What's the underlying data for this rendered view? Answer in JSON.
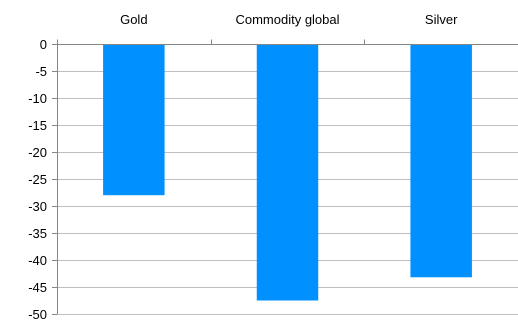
{
  "chart_data": {
    "type": "bar",
    "categories": [
      "Gold",
      "Commodity global",
      "Silver"
    ],
    "values": [
      -28,
      -47.5,
      -43.2
    ],
    "title": "",
    "xlabel": "",
    "ylabel": "",
    "ylim": [
      -50,
      0
    ],
    "yticks": [
      "0",
      "-5",
      "-10",
      "-15",
      "-20",
      "-25",
      "-30",
      "-35",
      "-40",
      "-45",
      "-50"
    ],
    "grid": true,
    "category_axis_position": "top",
    "colors": {
      "bar": "#0090FF",
      "grid": "#BFBFBF",
      "axis": "#868686"
    }
  }
}
